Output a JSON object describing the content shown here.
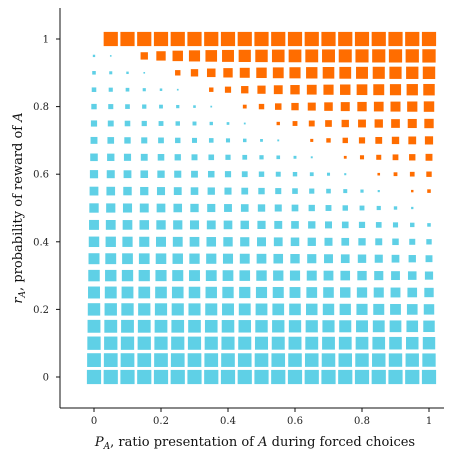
{
  "chart_data": {
    "type": "heatmap",
    "marker": "square",
    "encoding": "square size grows with distance from the line r_A = 1 - P_A / 2; orange above, blue below",
    "xlabel_html": "<tspan font-style=\"italic\">P</tspan><tspan font-style=\"italic\" font-size=\"9\" dy=\"3\">A</tspan><tspan dy=\"-3\">,  ratio presentation of </tspan><tspan font-style=\"italic\">A</tspan><tspan> during forced choices</tspan>",
    "ylabel_html": "<tspan font-style=\"italic\">r</tspan><tspan font-style=\"italic\" font-size=\"9\" dy=\"3\">A</tspan><tspan dy=\"-3\">,  probability of reward of </tspan><tspan font-style=\"italic\">A</tspan>",
    "x_ticks": [
      "0",
      "0.2",
      "0.4",
      "0.6",
      "0.8",
      "1"
    ],
    "y_ticks": [
      "0",
      "0.2",
      "0.4",
      "0.6",
      "0.8",
      "1"
    ],
    "xlim": [
      -0.1,
      1.03
    ],
    "ylim": [
      -0.1,
      1.1
    ],
    "grid_n": 21,
    "boundary": {
      "intercept": 1.0,
      "slope": -0.5
    },
    "colors": {
      "above": "#ff6d00",
      "below": "#5fd0e6"
    },
    "grid": false
  }
}
